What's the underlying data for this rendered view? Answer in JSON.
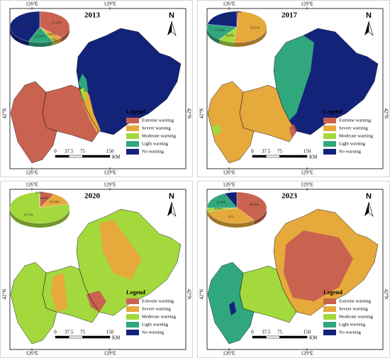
{
  "north": "N",
  "lon_labels": [
    "126°E",
    "129°E"
  ],
  "lat_label": "42°N",
  "legend_title": "Legend",
  "legend_items": [
    {
      "name": "Extreme warning",
      "color": "#c9634f"
    },
    {
      "name": "Severe warning",
      "color": "#e6a93c"
    },
    {
      "name": "Moderate warning",
      "color": "#a3d93c"
    },
    {
      "name": "Light warning",
      "color": "#30a77c"
    },
    {
      "name": "No warning",
      "color": "#13237a"
    }
  ],
  "scale": {
    "ticks": [
      0,
      37.5,
      75,
      150
    ],
    "unit": "KM"
  },
  "panels": [
    {
      "title": "2013",
      "pie": {
        "values": [
          37.01,
          4.42,
          1.76,
          12.93,
          43.88
        ],
        "value_labels": [
          "37.01%",
          "4.42%",
          "1.76%",
          "12.93%",
          "43.88%"
        ]
      }
    },
    {
      "title": "2017",
      "pie": {
        "values": [
          1.18,
          50.51,
          8.49,
          17.52,
          22.3
        ],
        "value_labels": [
          "1.18%",
          "50.51%",
          "8.49%",
          "17.52%",
          "22.30%"
        ]
      }
    },
    {
      "title": "2020",
      "pie": {
        "values": [
          8.04,
          13.25,
          78.71,
          0.0,
          0.0
        ],
        "value_labels": [
          "8.04%",
          "13.25%",
          "78.71%",
          "0.00%",
          null
        ]
      }
    },
    {
      "title": "2023",
      "pie": {
        "values": [
          39.85,
          31,
          4.01,
          18.44,
          6.7
        ],
        "value_labels": [
          "39.85%",
          "31%",
          "4.01%",
          "18.44%",
          "6.70%"
        ]
      }
    }
  ]
}
